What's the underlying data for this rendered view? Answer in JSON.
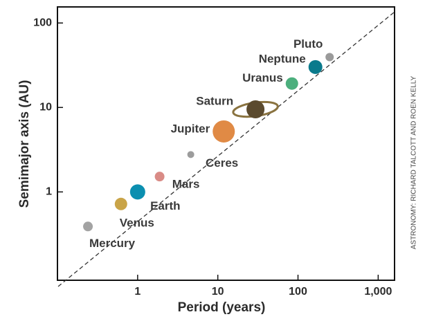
{
  "chart_data": {
    "type": "scatter",
    "x_label": "Period (years)",
    "y_label": "Semimajor axis (AU)",
    "credit": "ASTRONOMY: RICHARD TALCOTT AND ROEN KELLY",
    "labels": [
      "Mercury",
      "Venus",
      "Earth",
      "Mars",
      "Ceres",
      "Jupiter",
      "Saturn",
      "Uranus",
      "Neptune",
      "Pluto"
    ],
    "x": [
      0.24,
      0.62,
      1,
      1.88,
      4.6,
      11.86,
      29.5,
      84,
      165,
      248
    ],
    "values": [
      0.39,
      0.72,
      1,
      1.52,
      2.77,
      5.2,
      9.5,
      19.2,
      30.1,
      39.5
    ],
    "colors": [
      "#a3a3a3",
      "#c9a448",
      "#0b8fb0",
      "#d98b86",
      "#9c9c9c",
      "#e08a45",
      "#5b4a2e",
      "#4caf7d",
      "#0a7a8c",
      "#9a9a9a"
    ],
    "xlim": [
      0.1,
      1600
    ],
    "ylim": [
      0.09,
      155
    ],
    "xticks": [
      1,
      10,
      100,
      {
        "value": 1000,
        "label": "1,000"
      }
    ],
    "yticks": [
      1,
      10,
      100
    ],
    "xlog": true,
    "ylog": true
  }
}
